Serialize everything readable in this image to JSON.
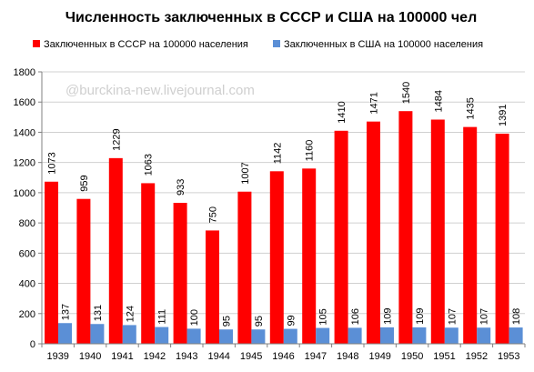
{
  "chart_data": {
    "type": "bar",
    "title": "Численность заключенных в СССР и США на 100000 чел",
    "watermark": "@burckina-new.livejournal.com",
    "categories": [
      "1939",
      "1940",
      "1941",
      "1942",
      "1943",
      "1944",
      "1945",
      "1946",
      "1947",
      "1948",
      "1949",
      "1950",
      "1951",
      "1952",
      "1953"
    ],
    "series": [
      {
        "name": "Заключенных в СССР на 100000 населения",
        "color": "#ff0000",
        "values": [
          1073,
          959,
          1229,
          1063,
          933,
          750,
          1007,
          1142,
          1160,
          1410,
          1471,
          1540,
          1484,
          1435,
          1391
        ],
        "bar_values": [
          1073,
          959,
          1229,
          1063,
          933,
          750,
          1007,
          1142,
          1160,
          1410,
          1471,
          1540,
          1484,
          1435,
          1391
        ]
      },
      {
        "name": "Заключенных в США на 100000 населения",
        "color": "#5b8fd6",
        "values": [
          137,
          131,
          124,
          111,
          100,
          95,
          95,
          99,
          105,
          106,
          109,
          109,
          107,
          107,
          108
        ]
      }
    ],
    "ylim": [
      0,
      1800
    ],
    "yticks": [
      0,
      200,
      400,
      600,
      800,
      1000,
      1200,
      1400,
      1600,
      1800
    ],
    "xlabel": "",
    "ylabel": "",
    "grid": true,
    "legend_position": "top"
  }
}
